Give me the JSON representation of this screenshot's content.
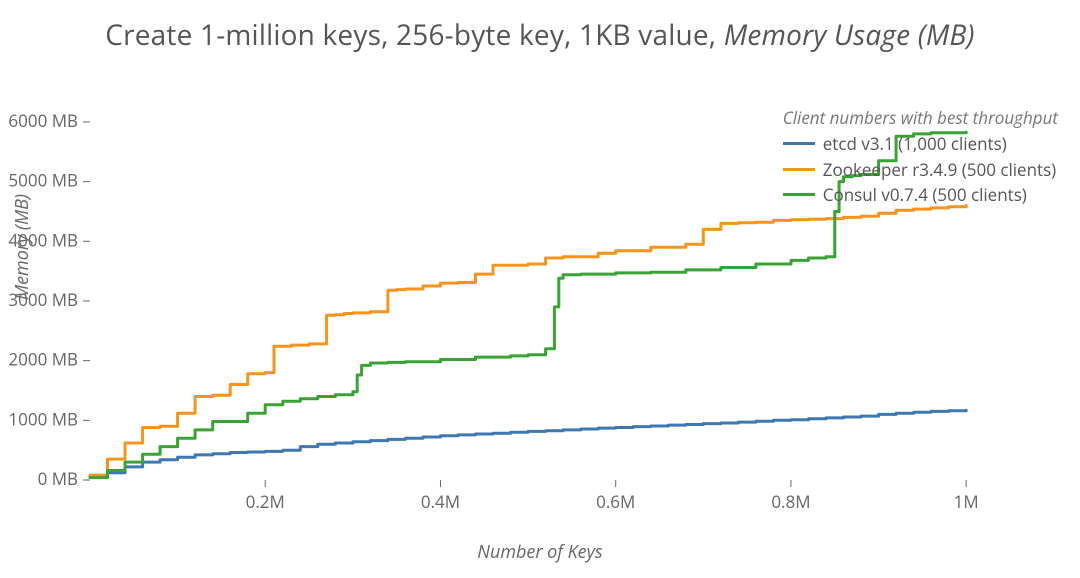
{
  "title_plain": "Create 1-million keys, 256-byte key, 1KB value, ",
  "title_em": "Memory Usage (MB)",
  "chart": {
    "type": "line",
    "background_color": "#ffffff",
    "xlabel": "Number of Keys",
    "ylabel": "Memory (MB)",
    "label_fontsize": 18,
    "tick_fontsize": 17,
    "title_fontsize": 28,
    "xlim": [
      0,
      1050000
    ],
    "ylim": [
      0,
      6200
    ],
    "x_ticks": [
      200000,
      400000,
      600000,
      800000,
      1000000
    ],
    "x_tick_labels": [
      "0.2M",
      "0.4M",
      "0.6M",
      "0.8M",
      "1M"
    ],
    "y_ticks": [
      0,
      1000,
      2000,
      3000,
      4000,
      5000,
      6000
    ],
    "y_tick_labels": [
      "0 MB",
      "1000 MB",
      "2000 MB",
      "3000 MB",
      "4000 MB",
      "5000 MB",
      "6000 MB"
    ],
    "axis_color": "#555555",
    "tick_color": "#666666",
    "line_width": 3,
    "y_tick_suffix": " MB",
    "legend_note": "Client numbers with best throughput",
    "series": [
      {
        "id": "etcd",
        "label": "etcd v3.1 (1,000 clients)",
        "color": "#3d78b4",
        "x": [
          0,
          20000,
          40000,
          60000,
          80000,
          100000,
          120000,
          140000,
          160000,
          180000,
          200000,
          220000,
          240000,
          260000,
          280000,
          300000,
          320000,
          340000,
          360000,
          380000,
          400000,
          420000,
          440000,
          460000,
          480000,
          500000,
          520000,
          540000,
          560000,
          580000,
          600000,
          620000,
          640000,
          660000,
          680000,
          700000,
          720000,
          740000,
          760000,
          780000,
          800000,
          820000,
          840000,
          860000,
          880000,
          900000,
          920000,
          940000,
          960000,
          980000,
          1000000
        ],
        "y": [
          60,
          120,
          220,
          300,
          340,
          380,
          420,
          440,
          460,
          470,
          480,
          500,
          560,
          600,
          620,
          640,
          660,
          680,
          700,
          720,
          740,
          755,
          770,
          785,
          800,
          815,
          825,
          840,
          855,
          870,
          880,
          895,
          905,
          920,
          930,
          945,
          955,
          970,
          985,
          1000,
          1010,
          1025,
          1040,
          1055,
          1070,
          1100,
          1120,
          1135,
          1150,
          1160,
          1170
        ]
      },
      {
        "id": "zookeeper",
        "label": "Zookeeper r3.4.9 (500 clients)",
        "color": "#f7941d",
        "x": [
          0,
          20000,
          40000,
          60000,
          80000,
          100000,
          120000,
          140000,
          160000,
          180000,
          200000,
          210000,
          230000,
          250000,
          270000,
          280000,
          290000,
          300000,
          320000,
          340000,
          350000,
          360000,
          380000,
          400000,
          420000,
          440000,
          460000,
          500000,
          520000,
          540000,
          560000,
          580000,
          600000,
          640000,
          680000,
          700000,
          720000,
          740000,
          760000,
          780000,
          800000,
          820000,
          840000,
          860000,
          880000,
          900000,
          920000,
          940000,
          960000,
          980000,
          1000000
        ],
        "y": [
          80,
          350,
          620,
          880,
          900,
          1120,
          1400,
          1420,
          1600,
          1780,
          1800,
          2240,
          2260,
          2280,
          2760,
          2770,
          2790,
          2800,
          2820,
          3180,
          3190,
          3200,
          3250,
          3300,
          3310,
          3450,
          3600,
          3620,
          3720,
          3740,
          3740,
          3800,
          3840,
          3900,
          3950,
          4200,
          4300,
          4310,
          4320,
          4350,
          4360,
          4370,
          4380,
          4400,
          4420,
          4470,
          4520,
          4540,
          4560,
          4580,
          4600
        ]
      },
      {
        "id": "consul",
        "label": "Consul v0.7.4 (500 clients)",
        "color": "#3aa335",
        "x": [
          0,
          20000,
          40000,
          60000,
          80000,
          100000,
          120000,
          140000,
          160000,
          180000,
          200000,
          220000,
          240000,
          260000,
          280000,
          300000,
          305000,
          310000,
          320000,
          340000,
          360000,
          400000,
          440000,
          480000,
          500000,
          520000,
          530000,
          535000,
          540000,
          560000,
          600000,
          640000,
          680000,
          720000,
          760000,
          800000,
          820000,
          840000,
          850000,
          855000,
          860000,
          870000,
          880000,
          900000,
          920000,
          940000,
          960000,
          980000,
          1000000
        ],
        "y": [
          40,
          160,
          300,
          430,
          560,
          700,
          840,
          980,
          980,
          1120,
          1260,
          1320,
          1360,
          1400,
          1430,
          1480,
          1760,
          1920,
          1960,
          1970,
          1980,
          2020,
          2060,
          2080,
          2100,
          2200,
          2900,
          3380,
          3440,
          3450,
          3470,
          3480,
          3520,
          3560,
          3620,
          3680,
          3720,
          3740,
          4500,
          5000,
          5080,
          5100,
          5120,
          5350,
          5760,
          5800,
          5820,
          5820,
          5830
        ]
      }
    ]
  }
}
